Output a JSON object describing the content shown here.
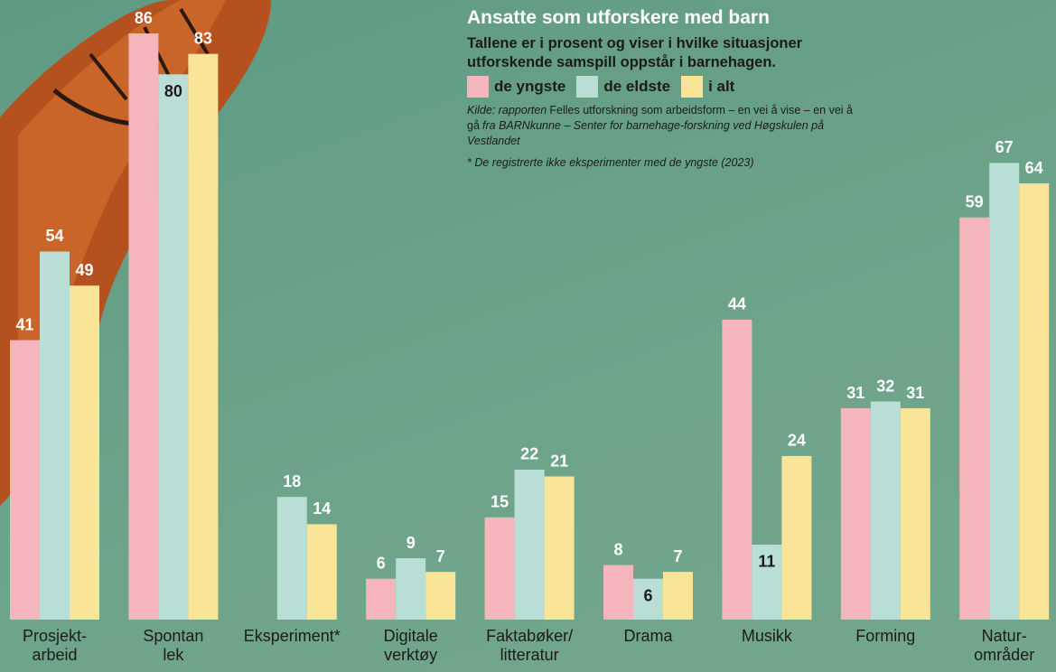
{
  "chart_data": {
    "type": "bar",
    "title": "Ansatte som utforskere med barn",
    "subtitle": "Tallene er i prosent og viser i hvilke situasjoner utforskende samspill oppstår i barnehagen.",
    "source": [
      "Kilde: rapporten",
      "Felles utforskning som arbeidsform – en vei å vise – en vei å gå",
      "fra BARNkunne – Senter for barnehage-forskning ved Høgskulen på Vestlandet"
    ],
    "note": "* De registrerte ikke eksperimenter med de yngste (2023)",
    "categories": [
      "Prosjekt-\narbeid",
      "Spontan\nlek",
      "Eksperiment*",
      "Digitale\nverktøy",
      "Faktabøker/\nlitteratur",
      "Drama",
      "Musikk",
      "Forming",
      "Natur-\nområder"
    ],
    "series": [
      {
        "name": "de yngste",
        "color": "#f4b5bd",
        "values": [
          41,
          86,
          null,
          6,
          15,
          8,
          44,
          31,
          59
        ]
      },
      {
        "name": "de eldste",
        "color": "#b9ded6",
        "values": [
          54,
          80,
          18,
          9,
          22,
          6,
          11,
          32,
          67
        ]
      },
      {
        "name": "i alt",
        "color": "#f9e497",
        "values": [
          49,
          83,
          14,
          7,
          21,
          7,
          24,
          31,
          64
        ]
      }
    ]
  }
}
